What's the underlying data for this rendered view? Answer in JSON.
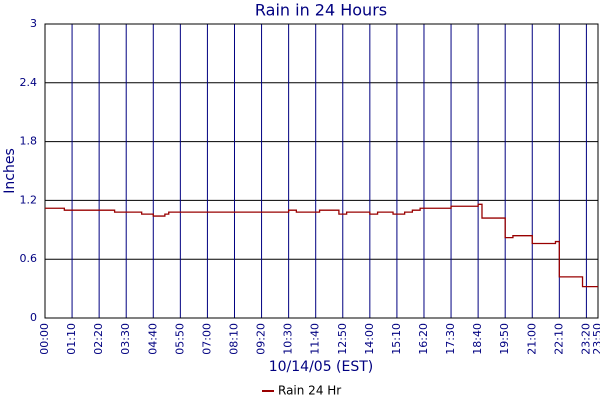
{
  "chart_data": {
    "type": "step-line",
    "title": "Rain in 24 Hours",
    "y_label": "Inches",
    "x_label": "10/14/05 (EST)",
    "x": [
      "00:00",
      "00:50",
      "03:00",
      "04:10",
      "04:40",
      "05:10",
      "05:20",
      "10:30",
      "10:50",
      "11:50",
      "12:40",
      "13:00",
      "14:00",
      "14:20",
      "15:00",
      "15:30",
      "15:50",
      "16:10",
      "17:30",
      "18:40",
      "18:50",
      "19:50",
      "20:10",
      "21:00",
      "22:00",
      "22:10",
      "23:10",
      "23:50"
    ],
    "series": [
      {
        "name": "Rain 24 Hr",
        "color": "#990000",
        "values": [
          1.12,
          1.1,
          1.08,
          1.06,
          1.04,
          1.06,
          1.08,
          1.1,
          1.08,
          1.1,
          1.06,
          1.08,
          1.06,
          1.08,
          1.06,
          1.08,
          1.1,
          1.12,
          1.14,
          1.16,
          1.02,
          0.82,
          0.84,
          0.76,
          0.78,
          0.42,
          0.32,
          0.32
        ]
      }
    ],
    "xlim": [
      "00:00",
      "23:50"
    ],
    "xticks": [
      "00:00",
      "01:10",
      "02:20",
      "03:30",
      "04:40",
      "05:50",
      "07:00",
      "08:10",
      "09:20",
      "10:30",
      "11:40",
      "12:50",
      "14:00",
      "15:10",
      "16:20",
      "17:30",
      "18:40",
      "19:50",
      "21:00",
      "22:10",
      "23:20",
      "23:50"
    ],
    "ylim": [
      0,
      3
    ],
    "yticks": [
      0,
      0.6,
      1.2,
      1.8,
      2.4,
      3
    ],
    "grid": true
  }
}
